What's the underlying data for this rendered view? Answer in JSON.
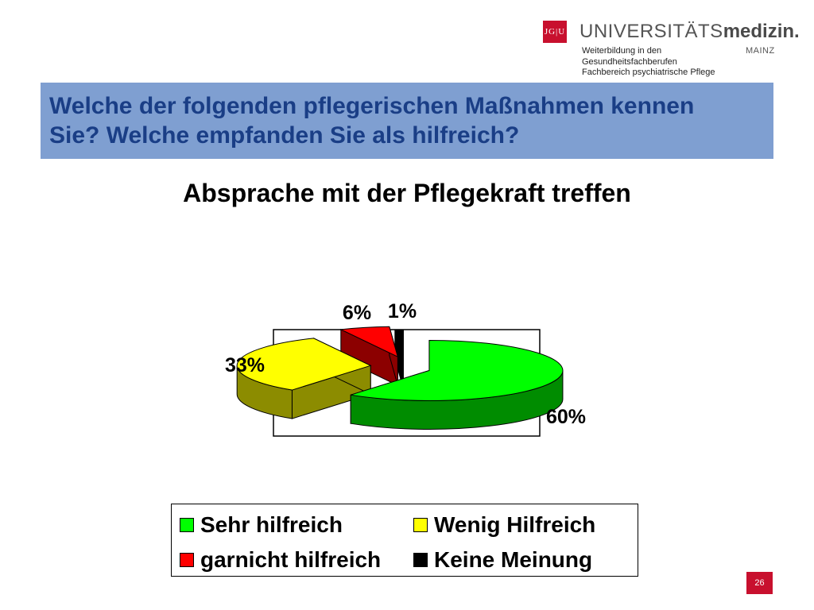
{
  "header": {
    "logo_mark": "JG|U",
    "brand_part1": "UNIVERSITÄTS",
    "brand_part2": "medizin.",
    "brand_city": "MAINZ",
    "sub_line1": "Weiterbildung in den",
    "sub_line2": "Gesundheitsfachberufen",
    "sub_line3": "Fachbereich psychiatrische Pflege"
  },
  "banner": {
    "text": "Welche der folgenden pflegerischen Maßnahmen kennen Sie? Welche empfanden Sie als hilfreich?",
    "background": "#7f9fd1",
    "text_color": "#1a3e86"
  },
  "chart_data": {
    "type": "pie",
    "title": "Absprache mit der Pflegekraft treffen",
    "slices": [
      {
        "label": "Sehr hilfreich",
        "value": 60,
        "display": "60%",
        "color": "#00ff00"
      },
      {
        "label": "Wenig Hilfreich",
        "value": 33,
        "display": "33%",
        "color": "#ffff00"
      },
      {
        "label": "garnicht hilfreich",
        "value": 6,
        "display": "6%",
        "color": "#ff0000"
      },
      {
        "label": "Keine Meinung",
        "value": 1,
        "display": "1%",
        "color": "#000000"
      }
    ],
    "legend_placement": "bottom"
  },
  "footer": {
    "page_number": "26",
    "accent": "#c8102e"
  }
}
